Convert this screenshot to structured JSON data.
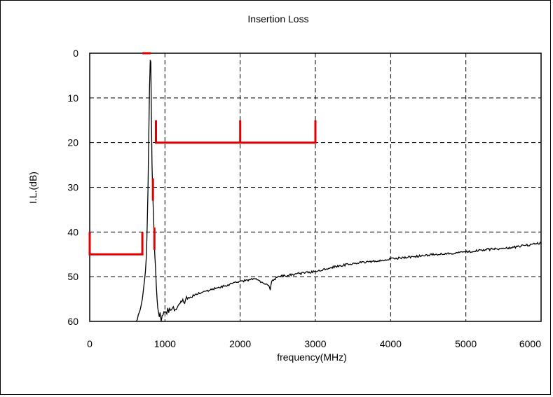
{
  "chart_data": {
    "type": "line",
    "title": "Insertion Loss",
    "xlabel": "frequency(MHz)",
    "ylabel": "I.L.(dB)",
    "xlim": [
      0,
      6000
    ],
    "ylim": [
      0,
      60
    ],
    "y_inverted": true,
    "grid": "dashed",
    "x_ticks": [
      0,
      1000,
      2000,
      3000,
      4000,
      5000,
      6000
    ],
    "y_ticks": [
      0,
      10,
      20,
      30,
      40,
      50,
      60
    ],
    "x_tick_labels": [
      "0",
      "1000",
      "2000",
      "3000",
      "4000",
      "5000",
      "6000"
    ],
    "y_tick_labels": [
      "0",
      "10",
      "20",
      "30",
      "40",
      "50",
      "60"
    ],
    "series": [
      {
        "color": "#000000",
        "style": "measured-noisy",
        "x": [
          620,
          660,
          700,
          720,
          740,
          755,
          765,
          775,
          785,
          795,
          805,
          812,
          820,
          828,
          836,
          845,
          855,
          865,
          875,
          885,
          895,
          905,
          915,
          925,
          935,
          950,
          1000,
          1100,
          1200,
          1300,
          1400,
          1500,
          1600,
          1700,
          1800,
          1900,
          2000,
          2200,
          2380,
          2400,
          2420,
          2500,
          2700,
          3000,
          3200,
          3500,
          3800,
          4000,
          4300,
          4600,
          4800,
          5000,
          5200,
          5400,
          5600,
          5800,
          6000
        ],
        "y": [
          60,
          58,
          55,
          52,
          49,
          45,
          38,
          30,
          18,
          8,
          1.5,
          2,
          14,
          25,
          30,
          35,
          40,
          45,
          48,
          52,
          55,
          57,
          58,
          59,
          58,
          60,
          58,
          57,
          56,
          55,
          54,
          53.5,
          53,
          52.5,
          52,
          51.5,
          51,
          50.5,
          52,
          53,
          51,
          50,
          49.5,
          48.8,
          48,
          47,
          46.5,
          46,
          45.5,
          45,
          44.8,
          44.5,
          44,
          43.8,
          43.5,
          43,
          42.5
        ]
      },
      {
        "color": "#e00000",
        "style": "spec-mask",
        "segments": [
          {
            "x": [
              0,
              0,
              700,
              700
            ],
            "y": [
              40,
              45,
              45,
              40
            ]
          },
          {
            "x": [
              700,
              810
            ],
            "y": [
              0,
              0
            ]
          },
          {
            "x": [
              840,
              840
            ],
            "y": [
              28,
              33
            ]
          },
          {
            "x": [
              860,
              860
            ],
            "y": [
              39,
              44
            ]
          },
          {
            "x": [
              880,
              880,
              3000,
              3000
            ],
            "y": [
              15,
              20,
              20,
              15
            ]
          },
          {
            "x": [
              2000,
              2000
            ],
            "y": [
              15,
              20
            ]
          }
        ]
      }
    ]
  }
}
